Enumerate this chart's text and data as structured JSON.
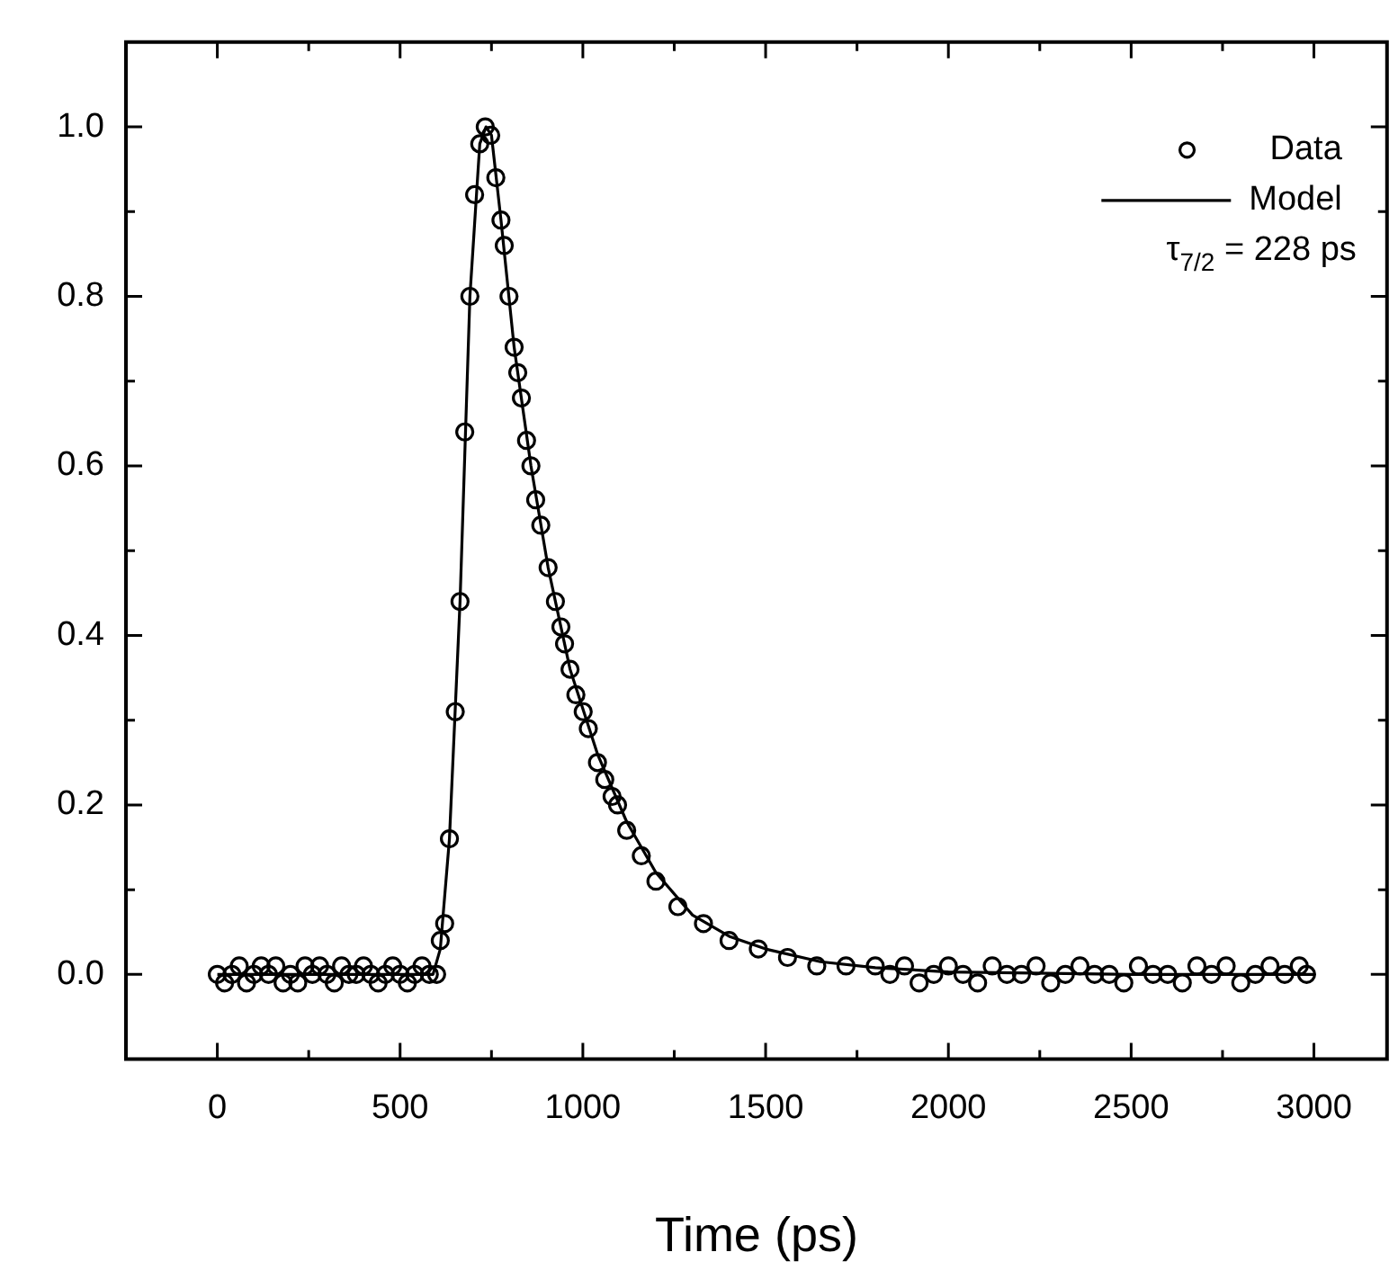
{
  "chart_data": {
    "type": "scatter",
    "xlabel": "Time (ps)",
    "xlim": [
      -250,
      3200
    ],
    "ylim": [
      -0.1,
      1.1
    ],
    "xticks": [
      0,
      {
        "value": 250,
        "label": null
      },
      500,
      {
        "value": 750,
        "label": null
      },
      1000,
      {
        "value": 1250,
        "label": null
      },
      1500,
      {
        "value": 1750,
        "label": null
      },
      2000,
      {
        "value": 2250,
        "label": null
      },
      2500,
      {
        "value": 2750,
        "label": null
      },
      3000
    ],
    "yticks": [
      {
        "value": -0.1,
        "label": null
      },
      {
        "value": 0,
        "label": "0.0"
      },
      {
        "value": 0.1,
        "label": null
      },
      {
        "value": 0.2,
        "label": "0.2"
      },
      {
        "value": 0.3,
        "label": null
      },
      {
        "value": 0.4,
        "label": "0.4"
      },
      {
        "value": 0.5,
        "label": null
      },
      {
        "value": 0.6,
        "label": "0.6"
      },
      {
        "value": 0.7,
        "label": null
      },
      {
        "value": 0.8,
        "label": "0.8"
      },
      {
        "value": 0.9,
        "label": null
      },
      {
        "value": 1.0,
        "label": "1.0"
      }
    ],
    "grid": false,
    "legend": "top right",
    "annotations": [
      "τ$_{7/2}$ = 228 ps"
    ],
    "series": [
      {
        "name": "Data",
        "type": "scatter",
        "marker": "circle",
        "color": "#000000",
        "x": [
          0,
          20,
          40,
          60,
          80,
          100,
          120,
          140,
          160,
          180,
          200,
          220,
          240,
          260,
          280,
          300,
          320,
          340,
          360,
          380,
          400,
          420,
          440,
          460,
          480,
          500,
          520,
          540,
          560,
          580,
          600,
          610,
          622,
          635,
          651,
          664,
          677,
          691,
          704,
          718,
          733,
          748,
          762,
          776,
          785,
          798,
          812,
          822,
          832,
          846,
          858,
          871,
          885,
          905,
          925,
          940,
          950,
          965,
          981,
          1001,
          1015,
          1040,
          1060,
          1080,
          1095,
          1120,
          1160,
          1200,
          1260,
          1330,
          1400,
          1480,
          1560,
          1640,
          1720,
          1800,
          1840,
          1880,
          1920,
          1960,
          2000,
          2040,
          2080,
          2120,
          2160,
          2200,
          2240,
          2280,
          2320,
          2360,
          2400,
          2440,
          2480,
          2520,
          2560,
          2600,
          2640,
          2680,
          2720,
          2760,
          2800,
          2840,
          2880,
          2920,
          2960,
          2980
        ],
        "values": [
          0,
          -0.01,
          0,
          0.01,
          -0.01,
          0,
          0.01,
          0,
          0.01,
          -0.01,
          0,
          -0.01,
          0.01,
          0,
          0.01,
          0,
          -0.01,
          0.01,
          0,
          0,
          0.01,
          0,
          -0.01,
          0,
          0.01,
          0,
          -0.01,
          0,
          0.01,
          0,
          0,
          0.04,
          0.06,
          0.16,
          0.31,
          0.44,
          0.64,
          0.8,
          0.92,
          0.98,
          1.0,
          0.99,
          0.94,
          0.89,
          0.86,
          0.8,
          0.74,
          0.71,
          0.68,
          0.63,
          0.6,
          0.56,
          0.53,
          0.48,
          0.44,
          0.41,
          0.39,
          0.36,
          0.33,
          0.31,
          0.29,
          0.25,
          0.23,
          0.21,
          0.2,
          0.17,
          0.14,
          0.11,
          0.08,
          0.06,
          0.04,
          0.03,
          0.02,
          0.01,
          0.01,
          0.01,
          0,
          0.01,
          -0.01,
          0,
          0.01,
          0,
          -0.01,
          0.01,
          0,
          0,
          0.01,
          -0.01,
          0,
          0.01,
          0,
          0,
          -0.01,
          0.01,
          0,
          0,
          -0.01,
          0.01,
          0,
          0.01,
          -0.01,
          0,
          0.01,
          0,
          0.01,
          0
        ]
      },
      {
        "name": "Model",
        "type": "line",
        "marker": "none",
        "line_style": "solid",
        "color": "#000000",
        "x": [
          0,
          590,
          610,
          635,
          664,
          691,
          718,
          735,
          750,
          776,
          812,
          858,
          905,
          965,
          1040,
          1120,
          1200,
          1300,
          1400,
          1500,
          1650,
          1800,
          2000,
          2500,
          3000
        ],
        "values": [
          0,
          0,
          0.03,
          0.16,
          0.44,
          0.8,
          0.98,
          1.0,
          0.99,
          0.89,
          0.74,
          0.6,
          0.48,
          0.36,
          0.26,
          0.18,
          0.12,
          0.07,
          0.045,
          0.03,
          0.015,
          0.008,
          0.003,
          0,
          0
        ]
      }
    ]
  }
}
